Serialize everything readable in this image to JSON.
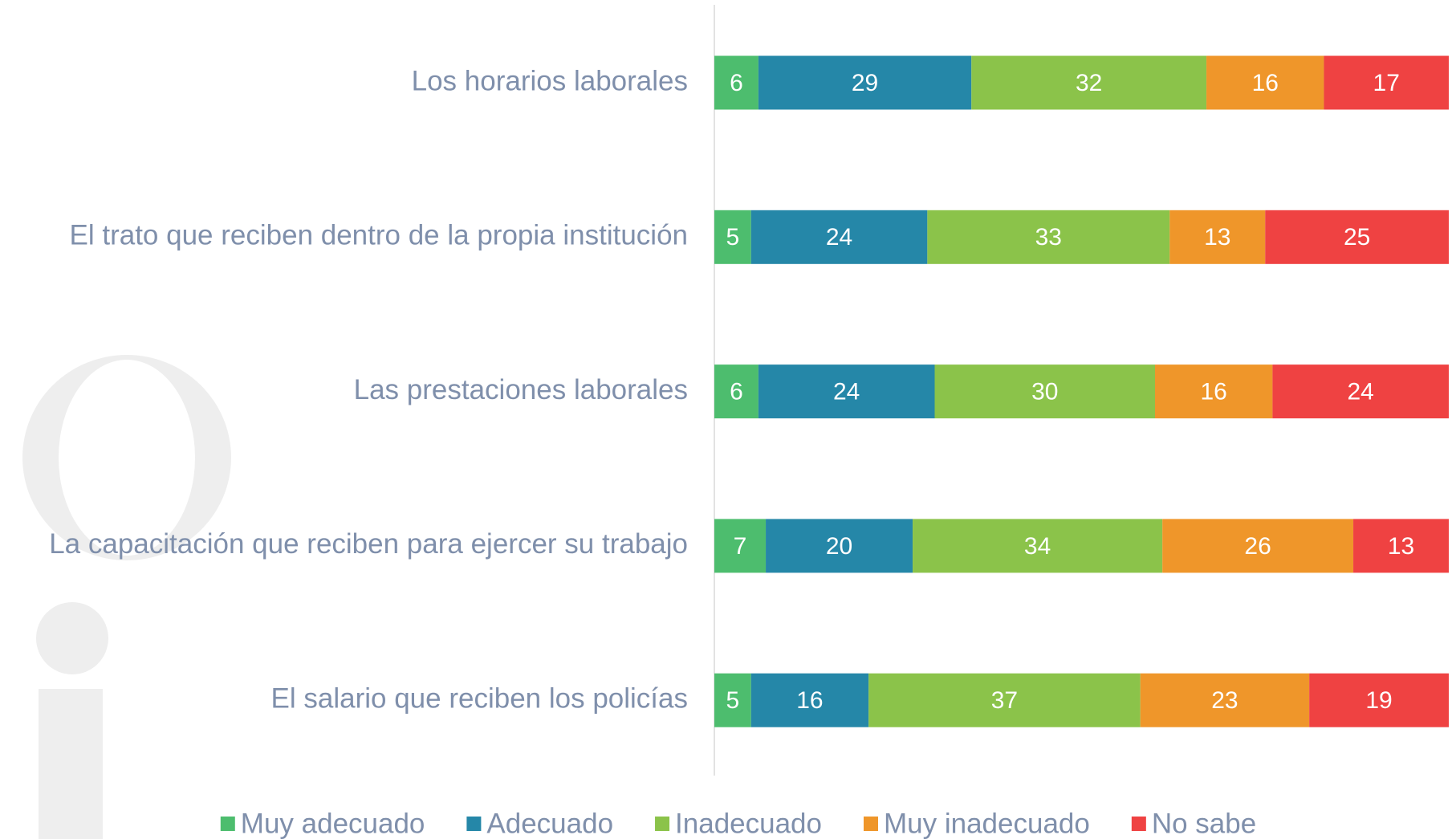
{
  "chart_data": {
    "type": "stacked-bar",
    "orientation": "horizontal",
    "categories": [
      "Los horarios laborales",
      "El trato que reciben dentro de la propia institución",
      "Las prestaciones laborales",
      "La capacitación que reciben para ejercer su trabajo",
      "El salario que reciben los policías"
    ],
    "series": [
      {
        "name": "Muy adecuado",
        "color": "#4dbd6e",
        "values": [
          6,
          5,
          6,
          7,
          5
        ]
      },
      {
        "name": "Adecuado",
        "color": "#2587a8",
        "values": [
          29,
          24,
          24,
          20,
          16
        ]
      },
      {
        "name": "Inadecuado",
        "color": "#8bc34a",
        "values": [
          32,
          33,
          30,
          34,
          37
        ]
      },
      {
        "name": "Muy inadecuado",
        "color": "#ef962a",
        "values": [
          16,
          13,
          16,
          26,
          23
        ]
      },
      {
        "name": "No sabe",
        "color": "#ef4242",
        "values": [
          17,
          25,
          24,
          13,
          19
        ]
      }
    ],
    "xlim": [
      0,
      100
    ],
    "legend": "bottom"
  }
}
